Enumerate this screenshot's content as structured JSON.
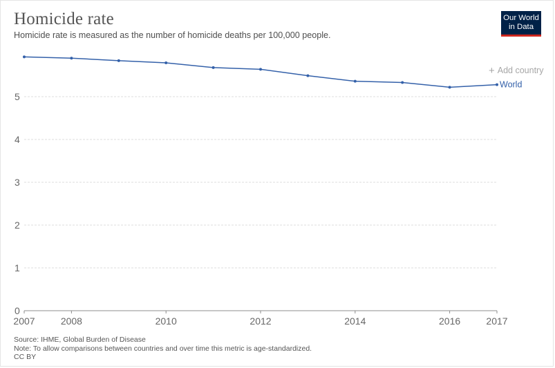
{
  "header": {
    "title": "Homicide rate",
    "subtitle": "Homicide rate is measured as the number of homicide deaths per 100,000 people.",
    "logo_line1": "Our World",
    "logo_line2": "in Data"
  },
  "controls": {
    "add_country_label": "Add country",
    "add_country_icon": "plus-icon"
  },
  "footer": {
    "source": "Source: IHME, Global Burden of Disease",
    "note": "Note: To allow comparisons between countries and over time this metric is age-standardized.",
    "license": "CC BY"
  },
  "colors": {
    "series": "#3360a9",
    "logo_bg": "#002147",
    "logo_bar": "#ce261e"
  },
  "chart_data": {
    "type": "line",
    "title": "Homicide rate",
    "subtitle": "Homicide rate is measured as the number of homicide deaths per 100,000 people.",
    "x": [
      2007,
      2008,
      2009,
      2010,
      2011,
      2012,
      2013,
      2014,
      2015,
      2016,
      2017
    ],
    "xticks": [
      2007,
      2008,
      2010,
      2012,
      2014,
      2016,
      2017
    ],
    "yticks": [
      0,
      1,
      2,
      3,
      4,
      5
    ],
    "ylim": [
      0,
      6
    ],
    "xlim": [
      2007,
      2017
    ],
    "grid": "horizontal dashed",
    "legend": "inline-right",
    "series": [
      {
        "name": "World",
        "values": [
          5.93,
          5.9,
          5.84,
          5.79,
          5.68,
          5.64,
          5.49,
          5.36,
          5.33,
          5.22,
          5.28
        ]
      }
    ]
  }
}
